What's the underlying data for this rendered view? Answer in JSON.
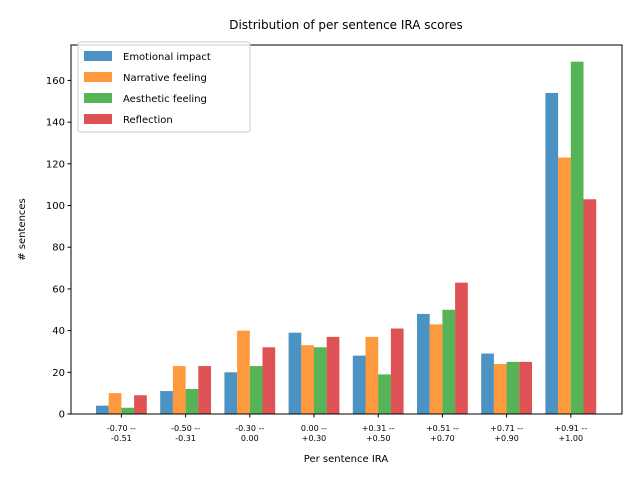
{
  "chart_data": {
    "type": "bar",
    "title": "Distribution of per sentence IRA scores",
    "xlabel": "Per sentence IRA",
    "ylabel": "# sentences",
    "ylim": [
      0,
      177
    ],
    "yticks": [
      0,
      20,
      40,
      60,
      80,
      100,
      120,
      140,
      160
    ],
    "grid": false,
    "legend_position": "top-left",
    "categories": [
      [
        "-0.70 --",
        "-0.51"
      ],
      [
        "-0.50 --",
        "-0.31"
      ],
      [
        "-0.30 --",
        "0.00"
      ],
      [
        "0.00 --",
        "+0.30"
      ],
      [
        "+0.31 --",
        "+0.50"
      ],
      [
        "+0.51 --",
        "+0.70"
      ],
      [
        "+0.71 --",
        "+0.90"
      ],
      [
        "+0.91 --",
        "+1.00"
      ]
    ],
    "series": [
      {
        "name": "Emotional impact",
        "color": "#1f77b4",
        "values": [
          4,
          11,
          20,
          39,
          28,
          48,
          29,
          154
        ]
      },
      {
        "name": "Narrative feeling",
        "color": "#ff7f0e",
        "values": [
          10,
          23,
          40,
          33,
          37,
          43,
          24,
          123
        ]
      },
      {
        "name": "Aesthetic feeling",
        "color": "#2ca02c",
        "values": [
          3,
          12,
          23,
          32,
          19,
          50,
          25,
          169
        ]
      },
      {
        "name": "Reflection",
        "color": "#d62728",
        "values": [
          9,
          23,
          32,
          37,
          41,
          63,
          25,
          103
        ]
      }
    ]
  }
}
